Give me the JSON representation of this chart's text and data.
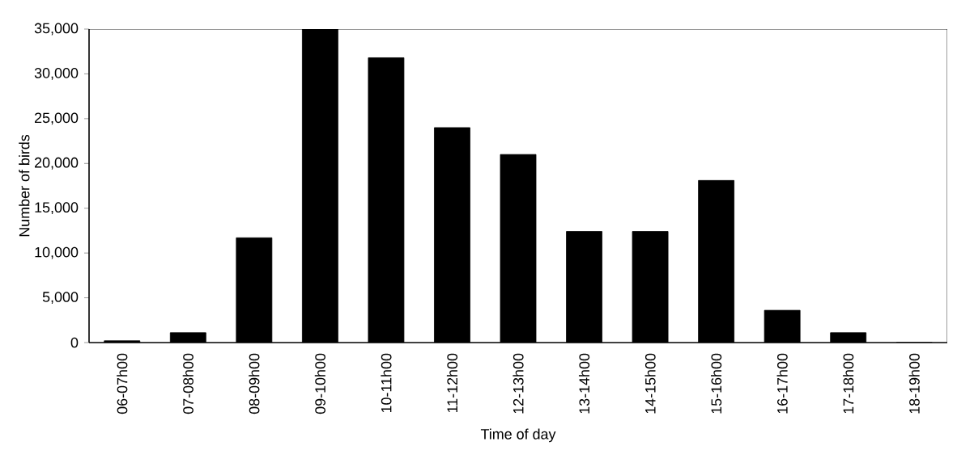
{
  "chart_data": {
    "type": "bar",
    "xlabel": "Time of day",
    "ylabel": "Number of birds",
    "categories": [
      "06-07h00",
      "07-08h00",
      "08-09h00",
      "09-10h00",
      "10-11h00",
      "11-12h00",
      "12-13h00",
      "13-14h00",
      "14-15h00",
      "15-16h00",
      "16-17h00",
      "17-18h00",
      "18-19h00"
    ],
    "values": [
      200,
      1100,
      11700,
      35000,
      31800,
      24000,
      21000,
      12400,
      12400,
      18100,
      3600,
      1100,
      0
    ],
    "color": "#000000",
    "ylim": [
      0,
      35000
    ],
    "yticks": [
      {
        "value": 0,
        "label": "0"
      },
      {
        "value": 5000,
        "label": "5,000"
      },
      {
        "value": 10000,
        "label": "10,000"
      },
      {
        "value": 15000,
        "label": "15,000"
      },
      {
        "value": 20000,
        "label": "20,000"
      },
      {
        "value": 25000,
        "label": "25,000"
      },
      {
        "value": 30000,
        "label": "30,000"
      },
      {
        "value": 35000,
        "label": "35,000"
      }
    ],
    "grid": false
  }
}
